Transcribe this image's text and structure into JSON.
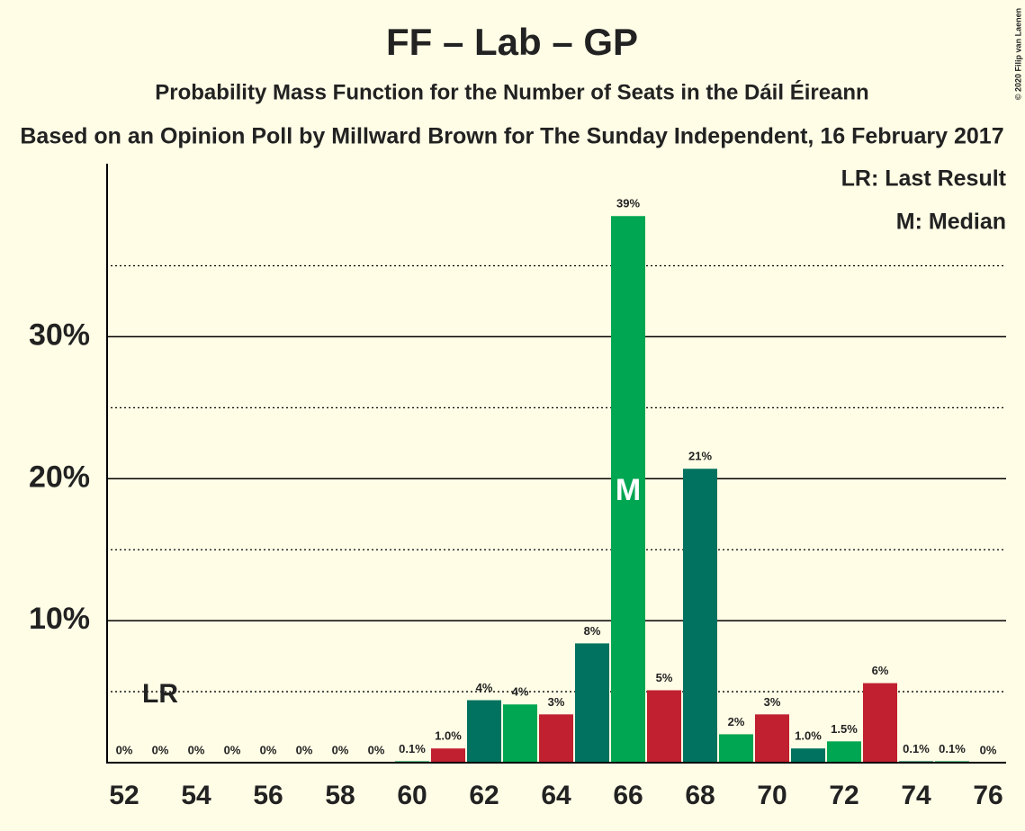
{
  "chart_data": {
    "type": "bar",
    "title": "FF – Lab – GP",
    "subtitle": "Probability Mass Function for the Number of Seats in the Dáil Éireann",
    "subtitle2": "Based on an Opinion Poll by Millward Brown for The Sunday Independent, 16 February 2017",
    "copyright": "© 2020 Filip van Laenen",
    "x": [
      52,
      53,
      54,
      55,
      56,
      57,
      58,
      59,
      60,
      61,
      62,
      63,
      64,
      65,
      66,
      67,
      68,
      69,
      70,
      71,
      72,
      73,
      74,
      75,
      76
    ],
    "values": [
      0,
      0,
      0,
      0,
      0,
      0,
      0,
      0,
      0.1,
      1.0,
      4.4,
      4.1,
      3.4,
      8.4,
      38.5,
      5.1,
      20.7,
      2.0,
      3.4,
      1.0,
      1.5,
      5.6,
      0.1,
      0.1,
      0
    ],
    "value_labels": [
      "0%",
      "0%",
      "0%",
      "0%",
      "0%",
      "0%",
      "0%",
      "0%",
      "0.1%",
      "1.0%",
      "4%",
      "4%",
      "3%",
      "8%",
      "39%",
      "5%",
      "21%",
      "2%",
      "3%",
      "1.0%",
      "1.5%",
      "6%",
      "0.1%",
      "0.1%",
      "0%"
    ],
    "colors": [
      "#c0202f",
      "#00725f",
      "#00a651",
      "#c0202f",
      "#00725f",
      "#00a651",
      "#c0202f",
      "#00725f",
      "#00a651",
      "#c0202f",
      "#00725f",
      "#00a651",
      "#c0202f",
      "#00725f",
      "#00a651",
      "#c0202f",
      "#00725f",
      "#00a651",
      "#c0202f",
      "#00725f",
      "#00a651",
      "#c0202f",
      "#00725f",
      "#00a651",
      "#c0202f"
    ],
    "xlim": [
      51.5,
      76.5
    ],
    "xticks": [
      52,
      54,
      56,
      58,
      60,
      62,
      64,
      66,
      68,
      70,
      72,
      74,
      76
    ],
    "ylim": [
      0,
      42
    ],
    "yticks": [
      {
        "value": 10,
        "label": "10%"
      },
      {
        "value": 20,
        "label": "20%"
      },
      {
        "value": 30,
        "label": "30%"
      }
    ],
    "minor_yticks": [
      5,
      15,
      25,
      35
    ],
    "last_result": {
      "x": 53,
      "label": "LR"
    },
    "median": {
      "x": 66,
      "label": "M"
    },
    "legend": [
      "LR: Last Result",
      "M: Median"
    ]
  }
}
